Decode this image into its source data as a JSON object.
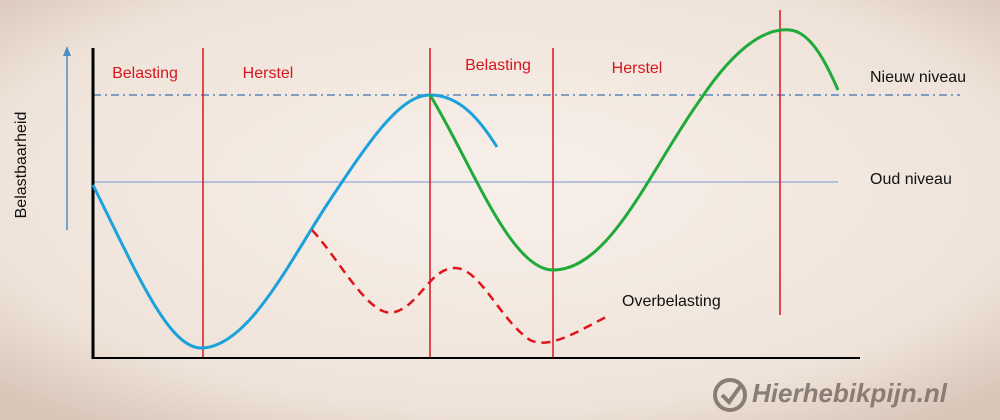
{
  "y_axis_label": "Belastbaarheid",
  "phases": [
    "Belasting",
    "Herstel",
    "Belasting",
    "Herstel"
  ],
  "levels": {
    "new": "Nieuw niveau",
    "old": "Oud niveau"
  },
  "annotation": "Overbelasting",
  "watermark": "Hierhebikpijn.nl"
}
